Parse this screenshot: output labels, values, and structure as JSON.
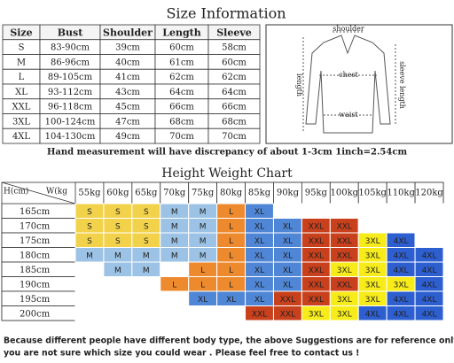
{
  "size_info": {
    "title": "Size Information",
    "headers": [
      "Size",
      "Bust",
      "Shoulder",
      "Length",
      "Sleeve"
    ],
    "rows": [
      [
        "S",
        "83-90cm",
        "39cm",
        "60cm",
        "58cm"
      ],
      [
        "M",
        "86-96cm",
        "40cm",
        "61cm",
        "60cm"
      ],
      [
        "L",
        "89-105cm",
        "41cm",
        "62cm",
        "62cm"
      ],
      [
        "XL",
        "93-112cm",
        "43cm",
        "64cm",
        "64cm"
      ],
      [
        "XXL",
        "96-118cm",
        "45cm",
        "66cm",
        "66cm"
      ],
      [
        "3XL",
        "100-124cm",
        "47cm",
        "68cm",
        "68cm"
      ],
      [
        "4XL",
        "104-130cm",
        "49cm",
        "70cm",
        "70cm"
      ]
    ]
  },
  "diagram": {
    "shoulder": "shoulder",
    "chest": "chest",
    "length": "length",
    "sleeve": "sleeve length",
    "waist": "waist"
  },
  "note": "Hand measurement will have discrepancy of about 1-3cm  1inch=2.54cm",
  "height_weight": {
    "title": "Height Weight Chart",
    "height_header": "H(cm)",
    "weight_header": "W(kg",
    "weights": [
      "55kg",
      "60kg",
      "65kg",
      "70kg",
      "75kg",
      "80kg",
      "85kg",
      "90kg",
      "95kg",
      "100kg",
      "105kg",
      "110kg",
      "120kg"
    ],
    "heights": [
      "165cm",
      "170cm",
      "175cm",
      "180cm",
      "185cm",
      "190cm",
      "195cm",
      "200cm"
    ],
    "cells": [
      [
        "S",
        "S",
        "S",
        "M",
        "M",
        "L",
        "XL",
        null,
        null,
        null,
        null,
        null,
        null
      ],
      [
        "S",
        "S",
        "S",
        "M",
        "M",
        "L",
        "XL",
        "XL",
        "XXL",
        "XXL",
        null,
        null,
        null
      ],
      [
        "S",
        "S",
        "S",
        "M",
        "M",
        "L",
        "XL",
        "XL",
        "XXL",
        "XXL",
        "3XL",
        "4XL",
        null
      ],
      [
        "M",
        "M",
        "M",
        "M",
        "M",
        "L",
        "XL",
        "XL",
        "XXL",
        "XXL",
        "3XL",
        "4XL",
        "4XL"
      ],
      [
        null,
        "M",
        "M",
        null,
        "L",
        "L",
        "XL",
        "XL",
        "XXL",
        "3XL",
        "3XL",
        "4XL",
        "4XL"
      ],
      [
        null,
        null,
        null,
        "L",
        "L",
        "L",
        "XL",
        "XL",
        "XXL",
        "XXL",
        "3XL",
        "3XL",
        "4XL"
      ],
      [
        null,
        null,
        null,
        null,
        "XL",
        "XL",
        "XL",
        "XXL",
        "XXL",
        "3XL",
        "3XL",
        "4XL",
        "4XL"
      ],
      [
        null,
        null,
        null,
        null,
        null,
        null,
        "XXL",
        "XXL",
        "3XL",
        "3XL",
        "4XL",
        "4XL",
        "4XL"
      ]
    ],
    "colors": {
      "S": "#f2d24b",
      "M": "#9cc3e6",
      "L": "#ee8a2e",
      "XL": "#4f86d6",
      "XXL": "#c9401c",
      "3XL": "#f7ec1a",
      "4XL": "#2e5fd0"
    }
  },
  "footer": [
    "Because different people have different body type, the above Suggestions are for reference only ! If",
    "you are not sure which size you could wear . Please feel free to contact us !"
  ]
}
